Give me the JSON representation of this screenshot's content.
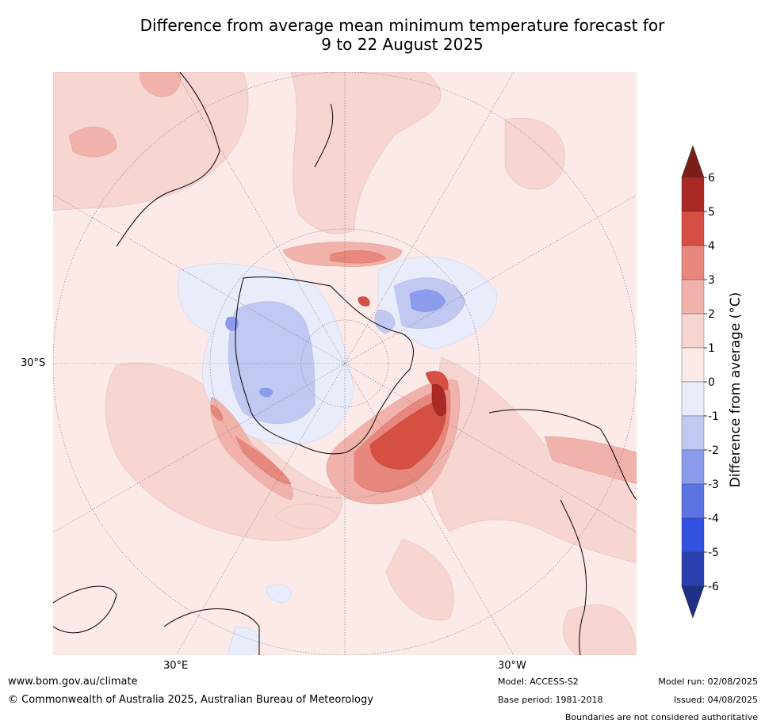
{
  "title": {
    "line1": "Difference from average mean minimum temperature forecast for",
    "line2": "9 to 22 August 2025"
  },
  "map": {
    "lat_label": "30°S",
    "lon_labels": [
      "30°E",
      "30°W"
    ],
    "background_color": "#fbeae8"
  },
  "colorbar": {
    "label": "Difference from average (°C)",
    "ticks": [
      "6",
      "5",
      "4",
      "3",
      "2",
      "1",
      "0",
      "-1",
      "-2",
      "-3",
      "-4",
      "-5",
      "-6"
    ],
    "colors": [
      "#7b1e1a",
      "#a92a24",
      "#d64f43",
      "#e8877c",
      "#f0b2aa",
      "#f7d5d0",
      "#fbeae8",
      "#e9ecfb",
      "#c1c9f2",
      "#8c9cec",
      "#5b73e3",
      "#3152e0",
      "#2a3fb0",
      "#1e2f86"
    ]
  },
  "footer": {
    "website": "www.bom.gov.au/climate",
    "copyright": "© Commonwealth of Australia 2025, Australian Bureau of Meteorology",
    "model": "Model: ACCESS-S2",
    "base_period": "Base period: 1981-2018",
    "model_run": "Model run: 02/08/2025",
    "issued": "Issued: 04/08/2025",
    "disclaimer": "Boundaries are not considered authoritative"
  }
}
